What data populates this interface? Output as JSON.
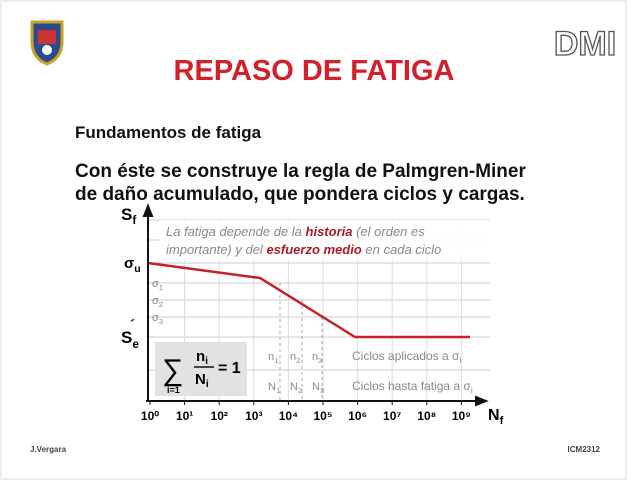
{
  "header": {
    "logo_text": "DMI",
    "title": "REPASO DE FATIGA"
  },
  "body": {
    "subtitle": "Fundamentos de fatiga",
    "lines": [
      "Con éste se construye la regla de Palmgren-Miner",
      "de daño acumulado, que pondera ciclos y cargas."
    ]
  },
  "diagram": {
    "y_axis_label": {
      "main": "S",
      "sub": "f"
    },
    "x_axis_label": {
      "main": "N",
      "sub": "f"
    },
    "stress_labels": [
      {
        "main": "σ",
        "sub": "u"
      },
      {
        "main": "σ",
        "sub": "1"
      },
      {
        "main": "σ",
        "sub": "2"
      },
      {
        "main": "σ",
        "sub": "3"
      },
      {
        "main": "S",
        "sub": "e",
        "accent": "´"
      }
    ],
    "x_ticks": [
      "10⁰",
      "10¹",
      "10²",
      "10³",
      "10⁴",
      "10⁵",
      "10⁶",
      "10⁷",
      "10⁸",
      "10⁹"
    ],
    "note": [
      "La fatiga depende de la ",
      "historia",
      " (el orden es",
      "importante) y del ",
      "esfuerzo medio",
      " en cada ciclo"
    ],
    "formula": {
      "sum": "∑",
      "index": "i=1",
      "numerator": {
        "main": "n",
        "sub": "i"
      },
      "denominator": {
        "main": "N",
        "sub": "i"
      },
      "result": "= 1"
    },
    "applied": [
      {
        "main": "n",
        "sub": "1"
      },
      {
        "main": "n",
        "sub": "2"
      },
      {
        "main": "n",
        "sub": "3"
      }
    ],
    "to_failure": [
      {
        "main": "N",
        "sub": "1"
      },
      {
        "main": "N",
        "sub": "2"
      },
      {
        "main": "N",
        "sub": "3"
      }
    ],
    "applied_label": {
      "main": "Ciclos aplicados a σ",
      "sub": "i"
    },
    "failure_label": {
      "main": "Ciclos hasta fatiga a σ",
      "sub": "i"
    }
  },
  "footer": {
    "left": "J.Vergara",
    "right": "ICM2312"
  }
}
